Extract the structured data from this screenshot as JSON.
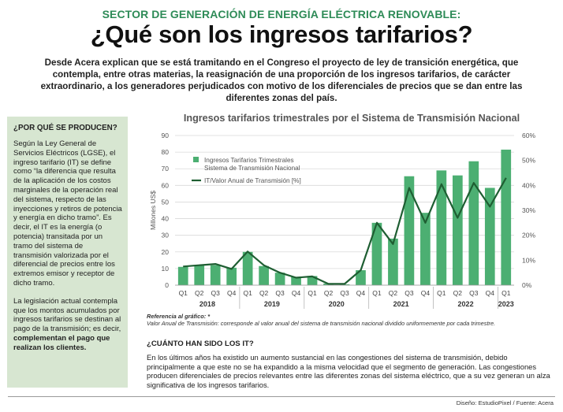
{
  "kicker": "SECTOR DE GENERACIÓN DE ENERGÍA ELÉCTRICA RENOVABLE:",
  "headline": "¿Qué son los ingresos tarifarios?",
  "lead": "Desde Acera explican que se está tramitando en el Congreso el proyecto de ley de transición energética, que contempla, entre otras materias, la reasignación de una proporción de los ingresos tarifarios, de carácter extraordinario, a los generadores perjudicados con motivo de los diferenciales de precios que se dan entre las diferentes zonas del país.",
  "sidebar": {
    "title": "¿POR QUÉ SE PRODUCEN?",
    "p1": "Según la Ley General de Servicios Eléctricos (LGSE), el ingreso tarifario (IT) se define como “la diferencia que resulta de la aplicación de los costos marginales de la operación real del sistema, respecto de las inyecciones y retiros de potencia y energía en dicho tramo”. Es decir, el IT es la energía (o potencia) transitada por un tramo del sistema de transmisión valorizada por el diferencial de precios entre los extremos emisor y receptor de dicho tramo.",
    "p2a": "La legislación actual contempla que los montos acumulados por ingresos tarifarios se destinan al pago de la transmisión; es decir, ",
    "p2b": "complementan el pago que realizan los clientes."
  },
  "chart_data": {
    "type": "bar+line",
    "title": "Ingresos tarifarios trimestrales por el Sistema de Transmisión Nacional",
    "ylabel": "Millones US$",
    "ylim": [
      0,
      90
    ],
    "y2lim": [
      0,
      60
    ],
    "yticks": [
      "0",
      "10",
      "20",
      "30",
      "40",
      "50",
      "60",
      "70",
      "80",
      "90"
    ],
    "y2ticks": [
      "0%",
      "10%",
      "20%",
      "30%",
      "40%",
      "50%",
      "60%"
    ],
    "quarters": [
      "Q1",
      "Q2",
      "Q3",
      "Q4",
      "Q1",
      "Q2",
      "Q3",
      "Q4",
      "Q1",
      "Q2",
      "Q3",
      "Q4",
      "Q1",
      "Q2",
      "Q3",
      "Q4",
      "Q1",
      "Q2",
      "Q3",
      "Q4",
      "Q1"
    ],
    "years": [
      {
        "label": "2018",
        "start": 0,
        "end": 3
      },
      {
        "label": "2019",
        "start": 4,
        "end": 7
      },
      {
        "label": "2020",
        "start": 8,
        "end": 11
      },
      {
        "label": "2021",
        "start": 12,
        "end": 15
      },
      {
        "label": "2022",
        "start": 16,
        "end": 19
      },
      {
        "label": "2023",
        "start": 20,
        "end": 20
      }
    ],
    "legend": {
      "bars": "Ingresos Tarifarios Trimestrales\nSistema de Transmisión Nacional",
      "line": "IT/Valor Anual de Transmisión [%]"
    },
    "series": [
      {
        "kind": "bar",
        "axis": "left",
        "values": [
          11,
          12,
          12,
          10.5,
          20,
          11.5,
          7.5,
          5,
          5.5,
          1,
          0.5,
          9,
          37.5,
          28,
          65.5,
          43.5,
          69,
          66,
          74.5,
          58.5,
          81.5
        ]
      },
      {
        "kind": "line",
        "axis": "right",
        "values": [
          7.5,
          8,
          8.5,
          6.5,
          13.5,
          8,
          5,
          3,
          3.5,
          0.5,
          0.5,
          6,
          25,
          16.5,
          39,
          25,
          40.5,
          27,
          41,
          31.5,
          43
        ]
      }
    ],
    "colors": {
      "bar": "#4caf72",
      "line": "#1e5e32",
      "grid": "#d9d9d9"
    }
  },
  "notes": {
    "line1": "Referencia al gráfico: *",
    "line2": "Valor Anual de Transmisión: corresponde al valor anual del sistema de transmisión nacional dividido uniformemente por cada trimestre."
  },
  "question": {
    "title": "¿CUÁNTO HAN SIDO LOS IT?",
    "body": "En los últimos años ha existido un aumento sustancial en las congestiones del sistema de transmisión, debido principalmente a que este no se ha expandido a la misma velocidad que el segmento de generación. Las congestiones producen diferenciales de precios relevantes entre las diferentes zonas del sistema eléctrico, que a su vez generan un alza significativa de los ingresos tarifarios."
  },
  "credits": "Diseño: EstudioPixel / Fuente: Acera"
}
